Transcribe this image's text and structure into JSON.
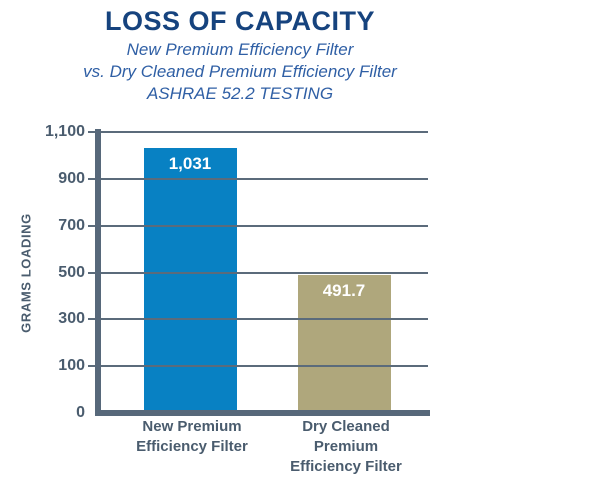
{
  "header": {
    "title": "LOSS OF CAPACITY",
    "subtitle_lines": [
      "New Premium Efficiency Filter",
      "vs. Dry Cleaned Premium Efficiency Filter",
      "ASHRAE 52.2 TESTING"
    ]
  },
  "chart_data": {
    "type": "bar",
    "title": "LOSS OF CAPACITY",
    "subtitle": "New Premium Efficiency Filter vs. Dry Cleaned Premium Efficiency Filter — ASHRAE 52.2 TESTING",
    "ylabel": "GRAMS LOADING",
    "categories": [
      "New Premium Efficiency Filter",
      "Dry Cleaned Premium Efficiency Filter"
    ],
    "category_lines": [
      [
        "New Premium",
        "Efficiency Filter"
      ],
      [
        "Dry Cleaned",
        "Premium",
        "Efficiency Filter"
      ]
    ],
    "values": [
      1031,
      491.7
    ],
    "value_labels": [
      "1,031",
      "491.7"
    ],
    "bar_colors": [
      "#0881c3",
      "#afa77c"
    ],
    "yticks": [
      0,
      100,
      300,
      500,
      700,
      900,
      1100
    ],
    "ytick_labels": [
      "0",
      "100",
      "300",
      "500",
      "700",
      "900",
      "1,100"
    ],
    "ylim": [
      0,
      1100
    ],
    "grid": true,
    "equal_tick_spacing": true,
    "legend": "none"
  },
  "colors": {
    "title_navy": "#16437e",
    "subtitle_blue": "#2f5fa5",
    "axis_slate": "#57687a",
    "grid_slate": "#5b6b7b",
    "label_slate": "#4a5c6e",
    "bar_blue": "#0881c3",
    "bar_tan": "#afa77c",
    "bar_value_text": "#ffffff"
  }
}
